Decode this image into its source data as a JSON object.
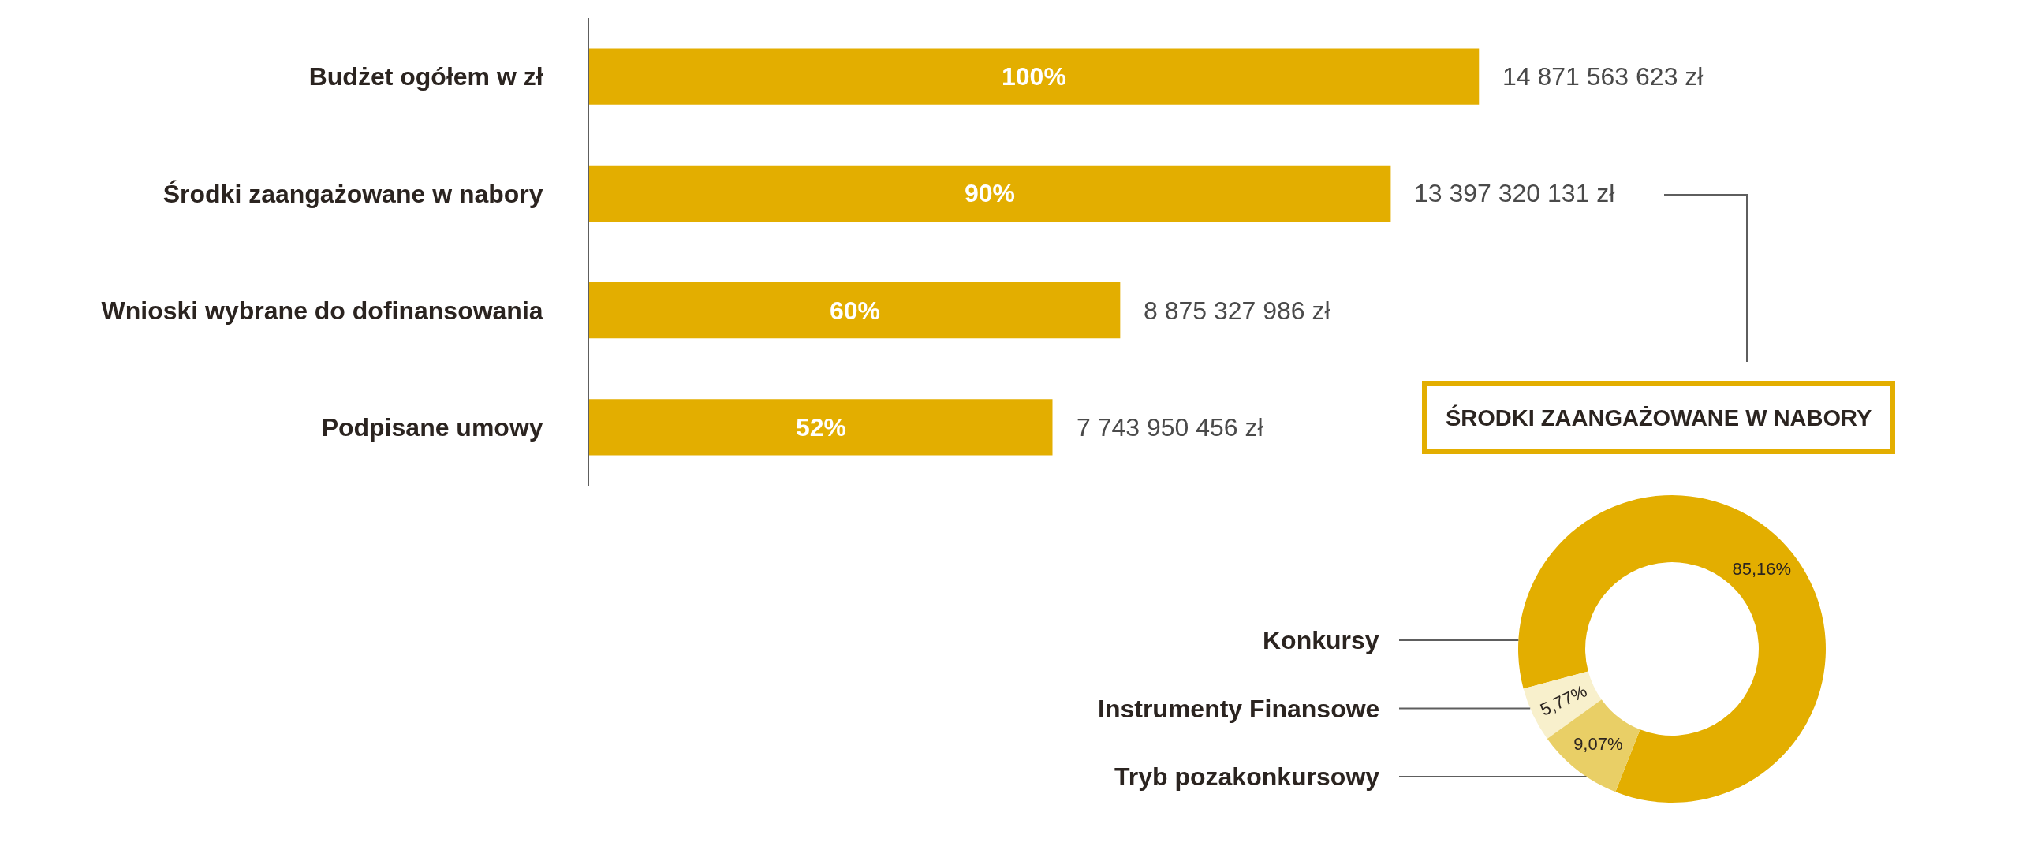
{
  "chart_data": [
    {
      "type": "bar",
      "orientation": "horizontal",
      "categories": [
        "Budżet ogółem w zł",
        "Środki zaangażowane w nabory",
        "Wnioski wybrane do dofinansowania",
        "Podpisane umowy"
      ],
      "values": [
        14871563623,
        13397320131,
        8875327986,
        7743950456
      ],
      "color": "#e3ae00",
      "value_labels": [
        "14 871 563 623 zł",
        "13 397 320 131 zł",
        "8 875 327 986 zł",
        "7 743 950 456 zł"
      ],
      "annotations": [
        "100%",
        "90%",
        "60%",
        "52%"
      ]
    },
    {
      "type": "donut",
      "title": "ŚRODKI ZAANGAŻOWANE W NABORY",
      "categories": [
        "Konkursy",
        "Instrumenty Finansowe",
        "Tryb pozakonkursowy"
      ],
      "values": [
        85.16,
        5.77,
        9.07
      ],
      "colors": [
        "#e3ae00",
        "#f8f0cc",
        "#e9cf66"
      ],
      "value_labels": [
        "85,16%",
        "5,77%",
        "9,07%"
      ]
    }
  ]
}
